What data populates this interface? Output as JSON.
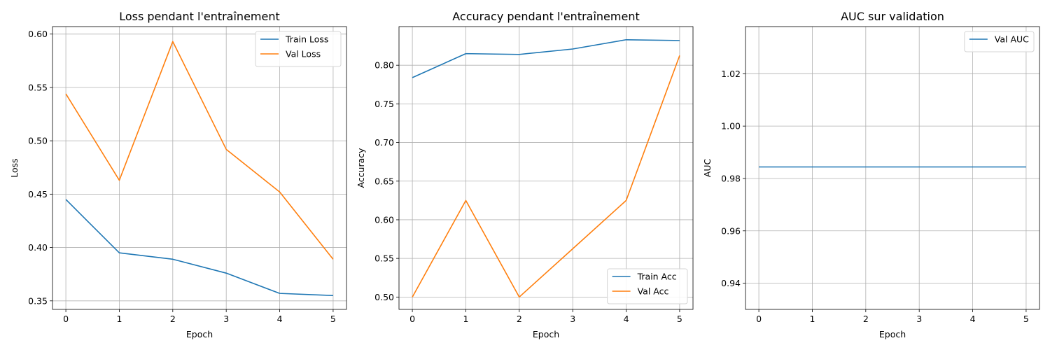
{
  "chart_data": [
    {
      "type": "line",
      "title": "Loss pendant l'entraînement",
      "xlabel": "Epoch",
      "ylabel": "Loss",
      "x": [
        0,
        1,
        2,
        3,
        4,
        5
      ],
      "xticks": [
        "0",
        "1",
        "2",
        "3",
        "4",
        "5"
      ],
      "xlim": [
        -0.25,
        5.25
      ],
      "ylim": [
        0.342,
        0.607
      ],
      "yticks": [
        "0.35",
        "0.40",
        "0.45",
        "0.50",
        "0.55",
        "0.60"
      ],
      "grid": true,
      "legend_position": "upper right",
      "series": [
        {
          "name": "Train Loss",
          "color": "#1f77b4",
          "values": [
            0.445,
            0.395,
            0.389,
            0.376,
            0.357,
            0.355
          ]
        },
        {
          "name": "Val Loss",
          "color": "#ff7f0e",
          "values": [
            0.544,
            0.463,
            0.593,
            0.492,
            0.452,
            0.389
          ]
        }
      ]
    },
    {
      "type": "line",
      "title": "Accuracy pendant l'entraînement",
      "xlabel": "Epoch",
      "ylabel": "Accuracy",
      "x": [
        0,
        1,
        2,
        3,
        4,
        5
      ],
      "xticks": [
        "0",
        "1",
        "2",
        "3",
        "4",
        "5"
      ],
      "xlim": [
        -0.25,
        5.25
      ],
      "ylim": [
        0.484,
        0.85
      ],
      "yticks": [
        "0.50",
        "0.55",
        "0.60",
        "0.65",
        "0.70",
        "0.75",
        "0.80"
      ],
      "grid": true,
      "legend_position": "lower right",
      "series": [
        {
          "name": "Train Acc",
          "color": "#1f77b4",
          "values": [
            0.784,
            0.815,
            0.814,
            0.821,
            0.833,
            0.832
          ]
        },
        {
          "name": "Val Acc",
          "color": "#ff7f0e",
          "values": [
            0.5,
            0.625,
            0.5,
            0.5625,
            0.625,
            0.8125
          ]
        }
      ]
    },
    {
      "type": "line",
      "title": "AUC sur validation",
      "xlabel": "Epoch",
      "ylabel": "AUC",
      "x": [
        0,
        1,
        2,
        3,
        4,
        5
      ],
      "xticks": [
        "0",
        "1",
        "2",
        "3",
        "4",
        "5"
      ],
      "xlim": [
        -0.25,
        5.25
      ],
      "ylim": [
        0.93,
        1.038
      ],
      "yticks": [
        "0.94",
        "0.96",
        "0.98",
        "1.00",
        "1.02"
      ],
      "grid": true,
      "legend_position": "upper right",
      "series": [
        {
          "name": "Val AUC",
          "color": "#1f77b4",
          "values": [
            0.9844,
            0.9844,
            0.9844,
            0.9844,
            0.9844,
            0.9844
          ]
        }
      ]
    }
  ]
}
